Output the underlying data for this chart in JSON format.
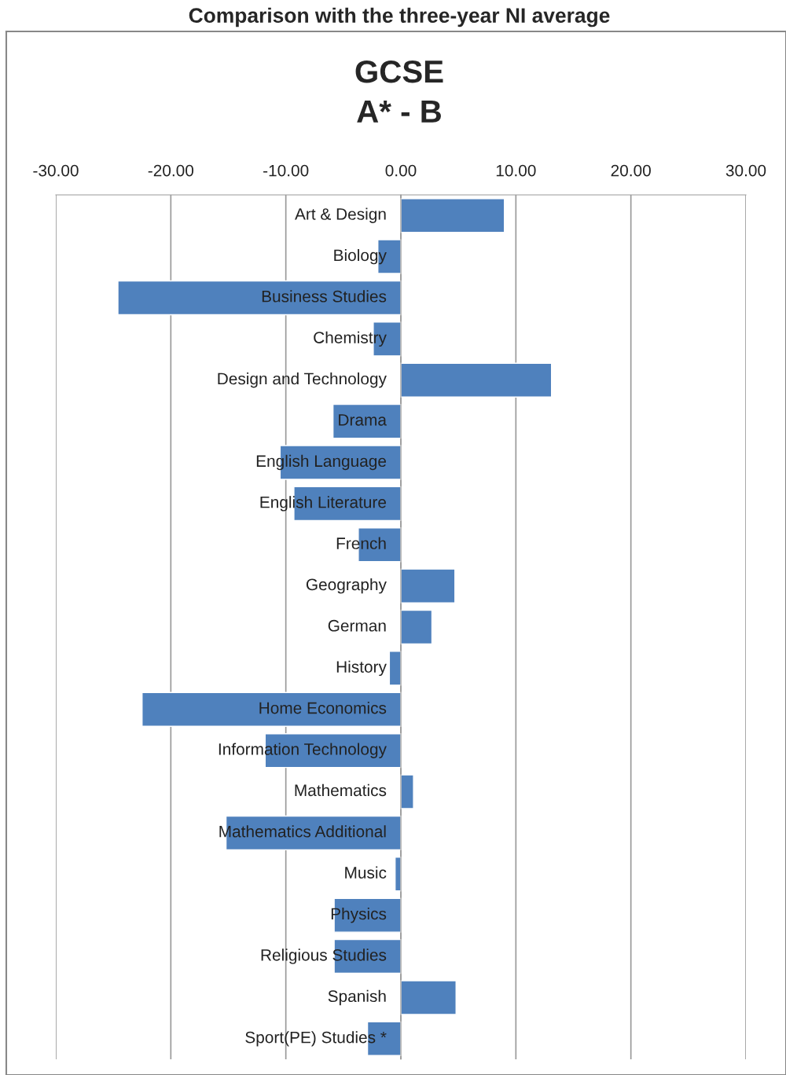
{
  "chart_data": {
    "type": "bar",
    "orientation": "horizontal",
    "title": "Comparison with the three-year NI average",
    "subtitle": "GCSE\nA* - B",
    "categories": [
      "Art & Design",
      "Biology",
      "Business Studies",
      "Chemistry",
      "Design and Technology",
      "Drama",
      "English Language",
      "English Literature",
      "French",
      "Geography",
      "German",
      "History",
      "Home Economics",
      "Information Technology",
      "Mathematics",
      "Mathematics Additional",
      "Music",
      "Physics",
      "Religious Studies",
      "Spanish",
      "Sport(PE) Studies *"
    ],
    "values": [
      9.0,
      -2.0,
      -24.6,
      -2.4,
      13.1,
      -5.9,
      -10.5,
      -9.3,
      -3.7,
      4.7,
      2.7,
      -1.0,
      -22.5,
      -11.8,
      1.1,
      -15.2,
      -0.5,
      -5.8,
      -5.8,
      4.8,
      -2.9
    ],
    "color": "#4f81bd",
    "xlim": [
      -30,
      30
    ],
    "xticks": [
      {
        "value": -30,
        "label": "-30.00"
      },
      {
        "value": -20,
        "label": "-20.00"
      },
      {
        "value": -10,
        "label": "-10.00"
      },
      {
        "value": 0,
        "label": "0.00"
      },
      {
        "value": 10,
        "label": "10.00"
      },
      {
        "value": 20,
        "label": "20.00"
      },
      {
        "value": 30,
        "label": "30.00"
      }
    ],
    "grid": "x"
  }
}
